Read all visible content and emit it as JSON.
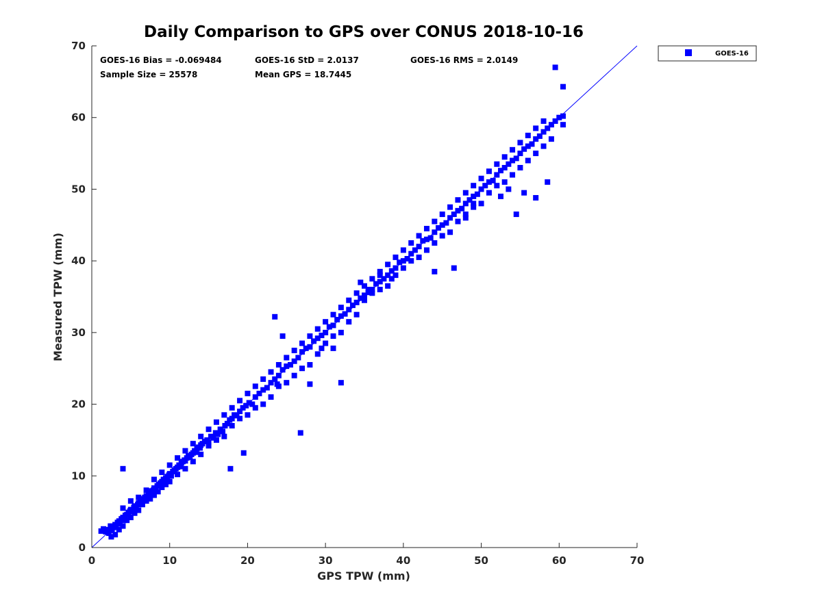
{
  "chart_data": {
    "type": "scatter",
    "title": "Daily Comparison to GPS over CONUS 2018-10-16",
    "xlabel": "GPS TPW (mm)",
    "ylabel": "Measured TPW (mm)",
    "xlim": [
      0,
      70
    ],
    "ylim": [
      0,
      70
    ],
    "xticks": [
      "0",
      "10",
      "20",
      "30",
      "40",
      "50",
      "60",
      "70"
    ],
    "yticks": [
      "0",
      "10",
      "20",
      "30",
      "40",
      "50",
      "60",
      "70"
    ],
    "grid": false,
    "legend_position": "outside-top-right",
    "reference_line": {
      "x": [
        0,
        70
      ],
      "y": [
        0,
        70
      ],
      "color": "#0000ff"
    },
    "series": [
      {
        "name": "GOES-16",
        "color": "#0000ff",
        "marker": "square",
        "x": [
          1.2,
          1.5,
          1.8,
          2.0,
          2.2,
          2.4,
          2.6,
          2.8,
          3.0,
          3.1,
          3.3,
          3.5,
          3.6,
          3.8,
          4.0,
          4.1,
          4.3,
          4.5,
          4.7,
          4.9,
          5.0,
          5.2,
          5.4,
          5.5,
          5.7,
          5.9,
          6.0,
          6.2,
          6.4,
          6.6,
          6.8,
          7.0,
          7.1,
          7.3,
          7.5,
          7.7,
          7.9,
          8.0,
          8.2,
          8.4,
          8.6,
          8.8,
          9.0,
          9.2,
          9.4,
          9.5,
          9.7,
          9.9,
          10.0,
          10.2,
          10.4,
          10.6,
          10.8,
          11.0,
          11.2,
          11.4,
          11.5,
          11.7,
          11.9,
          12.0,
          12.2,
          12.4,
          12.6,
          12.8,
          13.0,
          13.2,
          13.4,
          13.5,
          13.7,
          13.9,
          14.0,
          14.2,
          14.5,
          14.8,
          15.0,
          15.3,
          15.6,
          15.9,
          16.2,
          16.5,
          16.8,
          17.1,
          17.4,
          17.7,
          18.0,
          18.3,
          18.6,
          19.0,
          19.4,
          19.8,
          20.2,
          20.6,
          21.0,
          21.5,
          22.0,
          22.5,
          23.0,
          23.5,
          24.0,
          24.5,
          25.0,
          25.5,
          26.0,
          26.5,
          27.0,
          27.5,
          28.0,
          28.5,
          29.0,
          29.5,
          30.0,
          30.5,
          31.0,
          31.5,
          32.0,
          32.5,
          33.0,
          33.5,
          34.0,
          34.5,
          35.0,
          35.5,
          36.0,
          36.5,
          37.0,
          37.5,
          38.0,
          38.5,
          39.0,
          39.5,
          40.0,
          40.5,
          41.0,
          41.5,
          42.0,
          42.5,
          43.0,
          43.5,
          44.0,
          44.5,
          45.0,
          45.5,
          46.0,
          46.5,
          47.0,
          47.5,
          48.0,
          48.5,
          49.0,
          49.5,
          50.0,
          50.5,
          51.0,
          51.5,
          52.0,
          52.5,
          53.0,
          53.5,
          54.0,
          54.5,
          55.0,
          55.5,
          56.0,
          56.5,
          57.0,
          57.5,
          58.0,
          58.5,
          59.0,
          59.5,
          60.0,
          60.5,
          2.5,
          3.0,
          3.5,
          4.0,
          4.5,
          5.0,
          5.5,
          6.0,
          6.5,
          7.0,
          7.5,
          8.0,
          8.5,
          9.0,
          9.5,
          10.0,
          11.0,
          12.0,
          13.0,
          14.0,
          15.0,
          16.0,
          17.0,
          18.0,
          19.0,
          20.0,
          21.0,
          22.0,
          23.0,
          24.0,
          25.0,
          26.0,
          27.0,
          28.0,
          29.0,
          30.0,
          31.0,
          32.0,
          33.0,
          34.0,
          35.0,
          36.0,
          37.0,
          38.0,
          39.0,
          40.0,
          41.0,
          42.0,
          43.0,
          44.0,
          45.0,
          46.0,
          47.0,
          48.0,
          49.0,
          50.0,
          51.0,
          52.0,
          53.0,
          54.0,
          55.0,
          56.0,
          57.0,
          58.0,
          59.0,
          4.0,
          5.0,
          6.0,
          7.0,
          8.0,
          9.0,
          10.0,
          11.0,
          12.0,
          13.0,
          14.0,
          15.0,
          16.0,
          17.0,
          18.0,
          19.0,
          20.0,
          21.0,
          22.0,
          23.0,
          24.0,
          25.0,
          26.0,
          27.0,
          28.0,
          29.0,
          30.0,
          31.0,
          32.0,
          33.0,
          34.0,
          35.0,
          36.0,
          37.0,
          38.0,
          39.0,
          40.0,
          41.0,
          42.0,
          43.0,
          44.0,
          45.0,
          46.0,
          47.0,
          48.0,
          49.0,
          50.0,
          51.0,
          52.0,
          53.0,
          54.0,
          55.0,
          56.0,
          57.0,
          58.0,
          4.0,
          23.5,
          23.8,
          26.8,
          17.8,
          19.5,
          24.5,
          28.0,
          29.5,
          31.0,
          32.0,
          34.5,
          35.5,
          37.0,
          38.5,
          44.0,
          46.5,
          48.0,
          49.0,
          52.5,
          53.5,
          54.5,
          55.5,
          57.0,
          58.5,
          59.5,
          60.5,
          60.5
        ],
        "y": [
          2.3,
          2.6,
          2.2,
          2.5,
          2.0,
          3.0,
          2.4,
          2.8,
          3.2,
          2.9,
          3.5,
          3.7,
          3.3,
          4.0,
          4.2,
          3.8,
          4.5,
          4.6,
          4.9,
          5.1,
          5.3,
          5.0,
          5.6,
          5.8,
          5.5,
          6.0,
          6.2,
          6.4,
          6.5,
          6.8,
          7.0,
          7.2,
          7.0,
          7.5,
          7.6,
          7.9,
          8.0,
          8.3,
          8.1,
          8.6,
          8.8,
          9.0,
          9.2,
          9.5,
          9.4,
          9.7,
          9.9,
          10.1,
          10.3,
          10.0,
          10.6,
          10.8,
          11.0,
          11.2,
          11.5,
          11.3,
          11.8,
          12.0,
          12.2,
          12.1,
          12.5,
          12.8,
          12.6,
          13.0,
          13.2,
          13.5,
          13.3,
          13.8,
          14.0,
          13.9,
          14.3,
          14.5,
          14.8,
          15.0,
          14.7,
          15.5,
          15.3,
          16.0,
          15.8,
          16.5,
          16.2,
          17.0,
          17.3,
          17.8,
          18.0,
          18.5,
          18.4,
          19.0,
          19.5,
          19.8,
          20.2,
          20.0,
          21.0,
          21.5,
          22.0,
          22.3,
          23.0,
          23.5,
          24.0,
          24.8,
          25.3,
          25.5,
          26.0,
          26.5,
          27.3,
          27.8,
          28.0,
          28.8,
          29.2,
          29.6,
          30.0,
          30.8,
          31.0,
          31.8,
          32.3,
          32.6,
          33.2,
          33.8,
          34.2,
          34.8,
          35.2,
          35.6,
          36.0,
          36.8,
          37.1,
          37.5,
          38.0,
          38.6,
          39.0,
          39.8,
          40.0,
          40.3,
          41.0,
          41.5,
          42.0,
          42.8,
          43.0,
          43.2,
          44.0,
          44.6,
          45.0,
          45.3,
          46.0,
          46.5,
          47.0,
          47.3,
          48.0,
          48.5,
          49.0,
          49.3,
          50.0,
          50.5,
          51.0,
          51.2,
          52.0,
          52.6,
          53.0,
          53.5,
          54.0,
          54.3,
          55.0,
          55.6,
          56.0,
          56.3,
          57.0,
          57.4,
          58.0,
          58.5,
          59.0,
          59.5,
          60.0,
          60.2,
          1.5,
          1.8,
          2.5,
          3.0,
          3.8,
          4.2,
          4.8,
          5.2,
          6.0,
          6.5,
          6.8,
          7.3,
          7.8,
          8.4,
          8.8,
          9.2,
          10.2,
          11.0,
          12.0,
          13.0,
          14.2,
          15.0,
          15.5,
          17.0,
          18.0,
          18.5,
          19.5,
          20.0,
          21.0,
          22.5,
          23.0,
          24.0,
          25.0,
          25.5,
          27.0,
          28.5,
          29.5,
          30.0,
          31.5,
          32.5,
          34.5,
          35.5,
          36.0,
          36.5,
          38.0,
          39.0,
          40.0,
          40.5,
          41.5,
          42.5,
          43.5,
          44.0,
          45.5,
          46.5,
          47.5,
          48.0,
          49.5,
          50.5,
          51.0,
          52.0,
          53.0,
          54.0,
          55.0,
          56.0,
          57.0,
          5.5,
          6.5,
          7.0,
          8.0,
          9.5,
          10.5,
          11.5,
          12.5,
          13.5,
          14.5,
          15.5,
          16.5,
          17.5,
          18.5,
          19.5,
          20.5,
          21.5,
          22.5,
          23.5,
          24.5,
          25.5,
          26.5,
          27.5,
          28.5,
          29.5,
          30.5,
          31.5,
          32.5,
          33.5,
          34.5,
          35.5,
          36.5,
          37.5,
          38.5,
          39.5,
          40.5,
          41.5,
          42.5,
          43.5,
          44.5,
          45.5,
          46.5,
          47.5,
          48.5,
          49.5,
          50.5,
          51.5,
          52.5,
          53.5,
          54.5,
          55.5,
          56.5,
          57.5,
          58.5,
          59.5,
          11.0,
          32.2,
          22.8,
          16.0,
          11.0,
          13.2,
          29.5,
          22.8,
          27.8,
          27.8,
          23.0,
          37.0,
          36.0,
          38.0,
          37.5,
          38.5,
          39.0,
          46.0,
          48.0,
          49.0,
          50.0,
          46.5,
          49.5,
          48.8,
          51.0,
          67.0,
          64.3,
          59.0
        ]
      }
    ],
    "stats": [
      {
        "label": "GOES-16 Bias = -0.069484"
      },
      {
        "label": "GOES-16 StD = 2.0137"
      },
      {
        "label": "GOES-16 RMS = 2.0149"
      },
      {
        "label": "Sample Size = 25578"
      },
      {
        "label": "Mean GPS = 18.7445"
      }
    ]
  }
}
